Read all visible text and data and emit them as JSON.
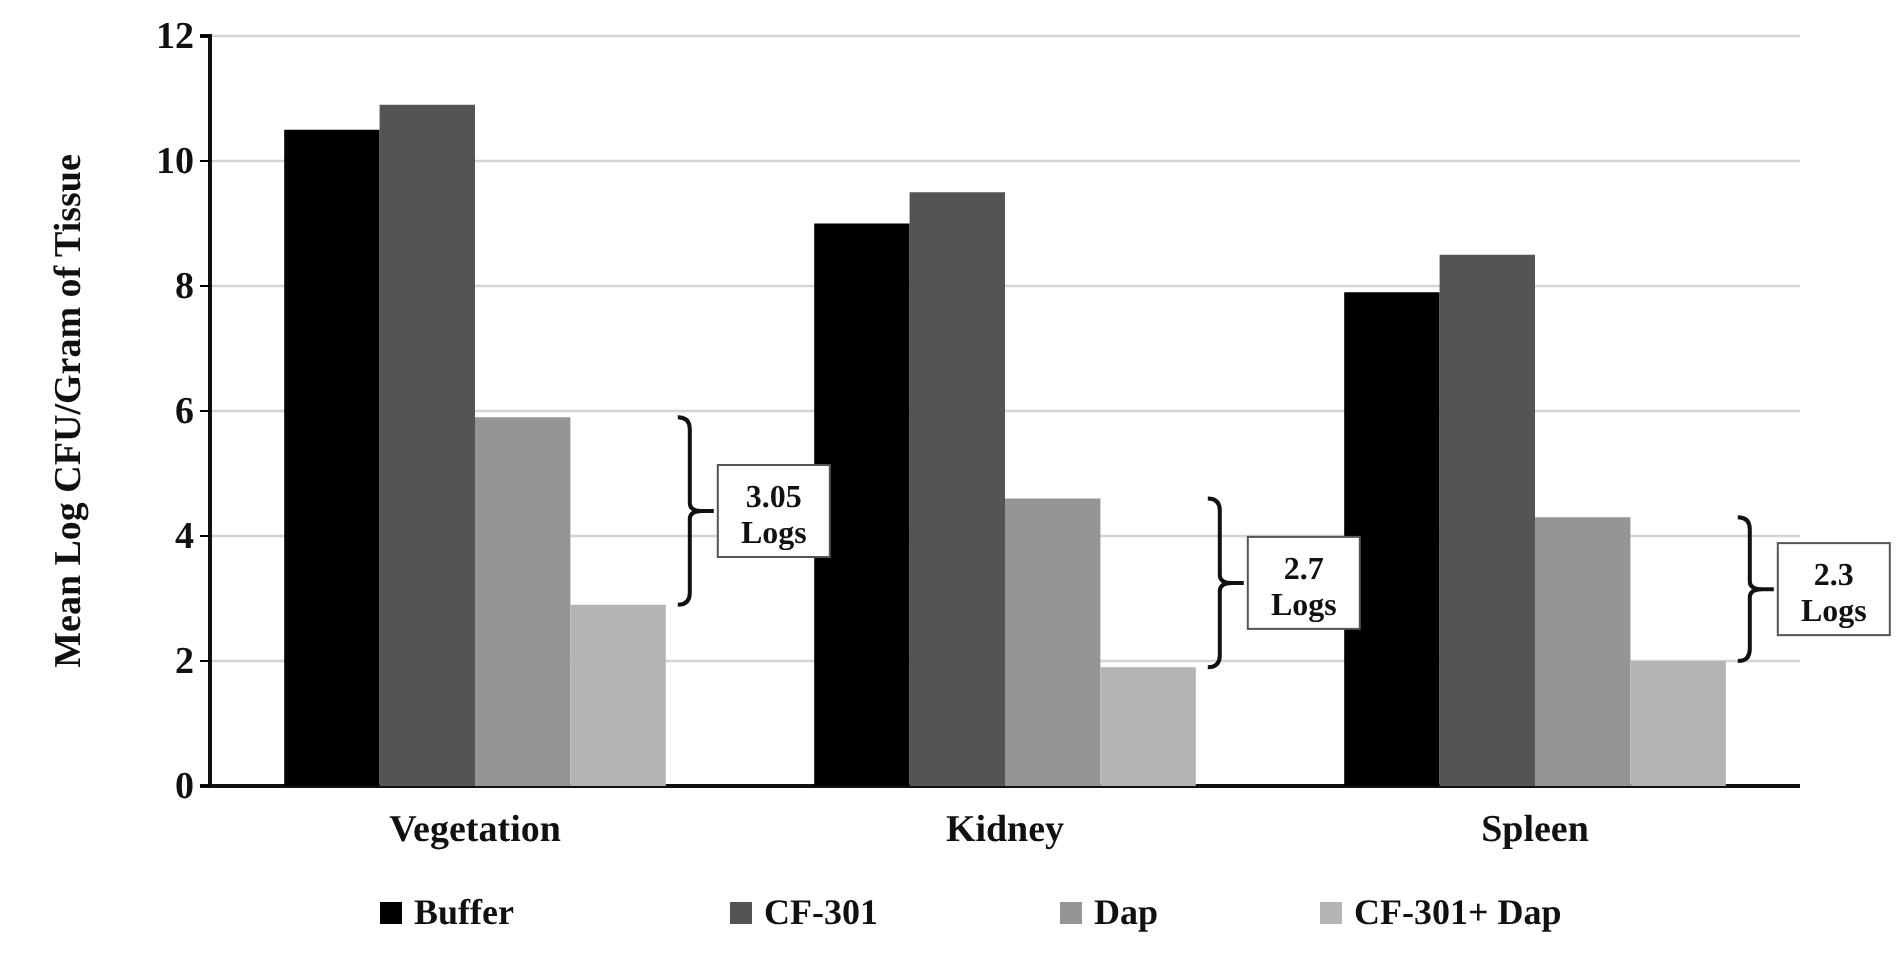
{
  "chart_data": {
    "type": "bar",
    "ylabel": "Mean Log CFU/Gram of Tissue",
    "categories": [
      "Vegetation",
      "Kidney",
      "Spleen"
    ],
    "series": [
      {
        "name": "Buffer",
        "color": "#000000",
        "values": [
          10.5,
          9.0,
          7.9
        ]
      },
      {
        "name": "CF-301",
        "color": "#545454",
        "values": [
          10.9,
          9.5,
          8.5
        ]
      },
      {
        "name": "Dap",
        "color": "#959595",
        "values": [
          5.9,
          4.6,
          4.3
        ]
      },
      {
        "name": "CF-301+ Dap",
        "color": "#b4b4b4",
        "values": [
          2.9,
          1.9,
          2.0
        ]
      }
    ],
    "ylim": [
      0,
      12
    ],
    "yticks": [
      0,
      2,
      4,
      6,
      8,
      10,
      12
    ],
    "grid": "y",
    "legend": "bottom",
    "annotations": [
      "3.05 Logs",
      "2.7 Logs",
      "2.3 Logs"
    ]
  }
}
